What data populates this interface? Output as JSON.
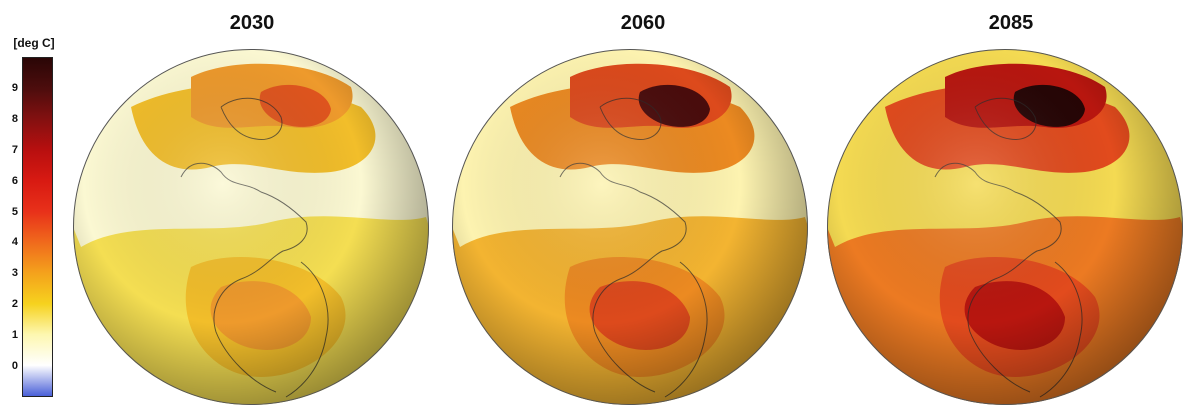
{
  "colorbar": {
    "unit_label": "[deg C]",
    "ticks": [
      "0",
      "1",
      "2",
      "3",
      "4",
      "5",
      "6",
      "7",
      "8",
      "9"
    ],
    "min": -1,
    "max": 10,
    "stops": [
      {
        "v": -1,
        "color": "#4a60d8"
      },
      {
        "v": 0,
        "color": "#ffffff"
      },
      {
        "v": 1,
        "color": "#fdf7b0"
      },
      {
        "v": 2,
        "color": "#f6d21e"
      },
      {
        "v": 3,
        "color": "#f4a21c"
      },
      {
        "v": 4,
        "color": "#f06a1c"
      },
      {
        "v": 5,
        "color": "#e8311a"
      },
      {
        "v": 6,
        "color": "#d81a12"
      },
      {
        "v": 7,
        "color": "#b80f0f"
      },
      {
        "v": 8,
        "color": "#841010"
      },
      {
        "v": 9,
        "color": "#4d0d0d"
      },
      {
        "v": 10,
        "color": "#2a0606"
      }
    ]
  },
  "globes": [
    {
      "year": "2030",
      "palette": [
        "#fbf8d2",
        "#f4de52",
        "#f2be2a",
        "#ee9a2c",
        "#e0551e"
      ]
    },
    {
      "year": "2060",
      "palette": [
        "#fdf3b0",
        "#f3b431",
        "#ec8a21",
        "#dd4a1c",
        "#4a0c0c"
      ]
    },
    {
      "year": "2085",
      "palette": [
        "#f4da52",
        "#ec7a22",
        "#e24b1d",
        "#b8160f",
        "#260505"
      ]
    }
  ]
}
